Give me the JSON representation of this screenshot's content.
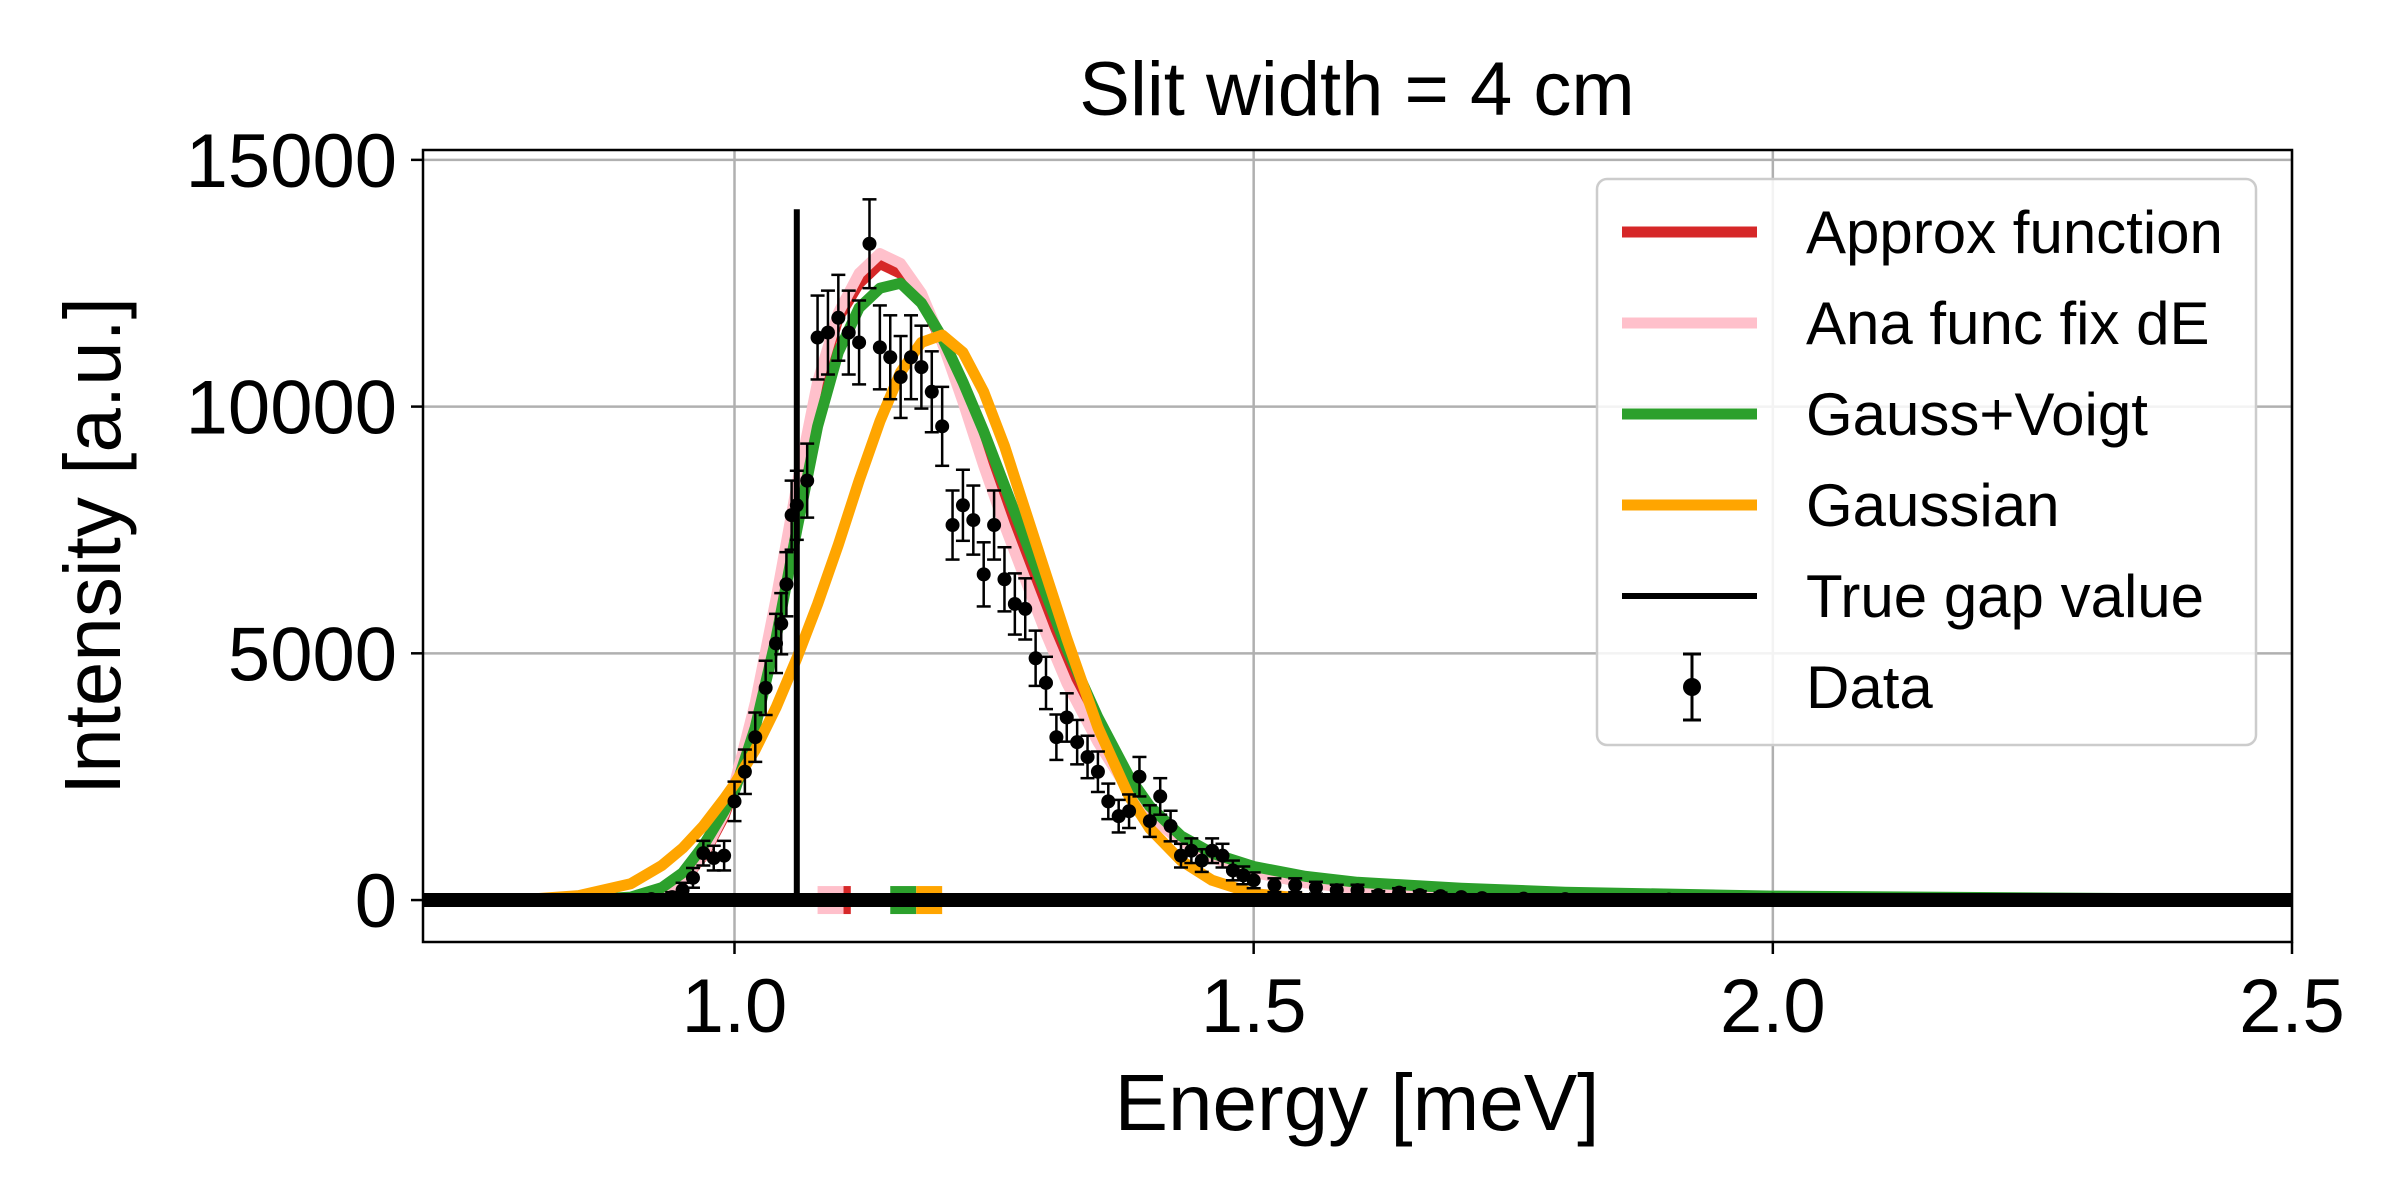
{
  "chart_data": {
    "type": "line",
    "title": "Slit width = 4 cm",
    "xlabel": "Energy [meV]",
    "ylabel": "Intensity [a.u.]",
    "xlim": [
      0.7,
      2.5
    ],
    "ylim": [
      -850,
      15200
    ],
    "xticks": [
      1.0,
      1.5,
      2.0,
      2.5
    ],
    "xtick_labels": [
      "1.0",
      "1.5",
      "2.0",
      "2.5"
    ],
    "yticks": [
      0,
      5000,
      10000,
      15000
    ],
    "ytick_labels": [
      "0",
      "5000",
      "10000",
      "15000"
    ],
    "grid": true,
    "legend_position": "top-right",
    "series": [
      {
        "name": "Approx function",
        "color": "#d62728",
        "marker_energy": [
          1.105,
          1.112
        ],
        "x": [
          0.7,
          0.85,
          0.9,
          0.93,
          0.95,
          0.97,
          0.99,
          1.0,
          1.02,
          1.04,
          1.06,
          1.08,
          1.1,
          1.12,
          1.14,
          1.16,
          1.18,
          1.2,
          1.22,
          1.24,
          1.26,
          1.28,
          1.3,
          1.32,
          1.35,
          1.38,
          1.4,
          1.43,
          1.46,
          1.5,
          1.55,
          1.6,
          1.7,
          1.8,
          2.0,
          2.5
        ],
        "y": [
          0,
          0,
          30,
          150,
          380,
          900,
          1700,
          2300,
          3900,
          6000,
          8300,
          10400,
          11800,
          12500,
          12900,
          12700,
          12200,
          11300,
          10200,
          9000,
          7800,
          6700,
          5600,
          4600,
          3300,
          2300,
          1800,
          1250,
          900,
          600,
          380,
          250,
          130,
          80,
          30,
          0
        ]
      },
      {
        "name": "Ana func fix dE",
        "color": "#ffc0cb",
        "marker_energy": [
          1.08,
          1.105
        ],
        "x": [
          0.7,
          0.85,
          0.9,
          0.93,
          0.95,
          0.97,
          0.99,
          1.0,
          1.02,
          1.04,
          1.06,
          1.08,
          1.1,
          1.12,
          1.14,
          1.16,
          1.18,
          1.2,
          1.22,
          1.24,
          1.26,
          1.28,
          1.3,
          1.32,
          1.35,
          1.38,
          1.4,
          1.43,
          1.46,
          1.5,
          1.55,
          1.6,
          1.7,
          1.8,
          2.0,
          2.5
        ],
        "y": [
          0,
          0,
          30,
          150,
          390,
          920,
          1750,
          2350,
          4000,
          6100,
          8400,
          10500,
          11900,
          12700,
          13100,
          12900,
          12300,
          11300,
          10100,
          8800,
          7600,
          6500,
          5400,
          4400,
          3200,
          2200,
          1700,
          1200,
          860,
          560,
          350,
          230,
          120,
          70,
          25,
          0
        ]
      },
      {
        "name": "Gauss+Voigt",
        "color": "#2ca02c",
        "marker_energy": [
          1.15,
          1.175
        ],
        "x": [
          0.7,
          0.85,
          0.9,
          0.93,
          0.95,
          0.97,
          0.99,
          1.0,
          1.02,
          1.04,
          1.06,
          1.08,
          1.1,
          1.12,
          1.14,
          1.16,
          1.18,
          1.2,
          1.22,
          1.24,
          1.26,
          1.28,
          1.3,
          1.32,
          1.35,
          1.38,
          1.4,
          1.43,
          1.46,
          1.5,
          1.55,
          1.6,
          1.7,
          1.8,
          2.0,
          2.5
        ],
        "y": [
          0,
          0,
          60,
          250,
          550,
          1100,
          1800,
          2200,
          3500,
          5300,
          7500,
          9600,
          11100,
          12000,
          12400,
          12500,
          12100,
          11400,
          10500,
          9500,
          8400,
          7300,
          6200,
          5100,
          3700,
          2500,
          1900,
          1300,
          950,
          680,
          480,
          360,
          240,
          160,
          80,
          10
        ]
      },
      {
        "name": "Gaussian",
        "color": "#ffa500",
        "marker_energy": [
          1.175,
          1.2
        ],
        "x": [
          0.7,
          0.8,
          0.85,
          0.9,
          0.93,
          0.95,
          0.97,
          0.99,
          1.0,
          1.02,
          1.04,
          1.06,
          1.08,
          1.1,
          1.12,
          1.14,
          1.16,
          1.18,
          1.2,
          1.22,
          1.24,
          1.26,
          1.28,
          1.3,
          1.32,
          1.35,
          1.38,
          1.4,
          1.43,
          1.46,
          1.5,
          1.55,
          1.6,
          1.7,
          2.0,
          2.5
        ],
        "y": [
          0,
          15,
          90,
          330,
          700,
          1050,
          1500,
          2050,
          2350,
          3050,
          3900,
          4900,
          6000,
          7200,
          8500,
          9700,
          10700,
          11300,
          11450,
          11100,
          10300,
          9200,
          7900,
          6600,
          5300,
          3500,
          2100,
          1450,
          800,
          400,
          130,
          30,
          5,
          0,
          0,
          0
        ]
      },
      {
        "name": "True gap value",
        "color": "#000000",
        "type": "vertical_line",
        "x": 1.06,
        "y_range": [
          0,
          14000
        ]
      },
      {
        "name": "Data",
        "color": "#000000",
        "type": "errorbar",
        "x": [
          0.9,
          0.92,
          0.94,
          0.95,
          0.96,
          0.97,
          0.98,
          0.99,
          1.0,
          1.01,
          1.02,
          1.03,
          1.04,
          1.045,
          1.05,
          1.055,
          1.06,
          1.07,
          1.08,
          1.09,
          1.1,
          1.11,
          1.12,
          1.13,
          1.14,
          1.15,
          1.16,
          1.17,
          1.18,
          1.19,
          1.2,
          1.21,
          1.22,
          1.23,
          1.24,
          1.25,
          1.26,
          1.27,
          1.28,
          1.29,
          1.3,
          1.31,
          1.32,
          1.33,
          1.34,
          1.35,
          1.36,
          1.37,
          1.38,
          1.39,
          1.4,
          1.41,
          1.42,
          1.43,
          1.44,
          1.45,
          1.46,
          1.47,
          1.48,
          1.49,
          1.5,
          1.52,
          1.54,
          1.56,
          1.58,
          1.6,
          1.62,
          1.64,
          1.66,
          1.68,
          1.7,
          1.72,
          1.76,
          1.8,
          1.9,
          2.0,
          2.2,
          2.4
        ],
        "y": [
          0,
          20,
          60,
          200,
          450,
          950,
          850,
          900,
          2000,
          2600,
          3300,
          4300,
          5200,
          5600,
          6400,
          7800,
          8000,
          8500,
          11400,
          11500,
          11800,
          11500,
          11300,
          13300,
          11200,
          11000,
          10600,
          11000,
          10800,
          10300,
          9600,
          7600,
          8000,
          7700,
          6600,
          7600,
          6500,
          6000,
          5900,
          4900,
          4400,
          3300,
          3700,
          3200,
          2900,
          2600,
          2000,
          1700,
          1800,
          2500,
          1600,
          2100,
          1500,
          900,
          1000,
          800,
          1000,
          900,
          600,
          500,
          400,
          300,
          300,
          250,
          200,
          200,
          100,
          150,
          100,
          80,
          60,
          40,
          30,
          20,
          10,
          5,
          0,
          0
        ],
        "err": [
          50,
          60,
          100,
          150,
          200,
          250,
          250,
          300,
          400,
          450,
          500,
          550,
          600,
          620,
          650,
          700,
          700,
          750,
          850,
          850,
          870,
          850,
          850,
          900,
          850,
          850,
          830,
          850,
          840,
          820,
          800,
          700,
          720,
          700,
          650,
          700,
          650,
          620,
          620,
          560,
          530,
          460,
          490,
          450,
          430,
          410,
          360,
          330,
          340,
          400,
          320,
          370,
          310,
          240,
          250,
          230,
          250,
          240,
          200,
          180,
          160,
          140,
          140,
          120,
          110,
          110,
          80,
          90,
          80,
          70,
          60,
          50,
          40,
          30,
          20,
          10,
          5,
          5
        ]
      }
    ]
  }
}
